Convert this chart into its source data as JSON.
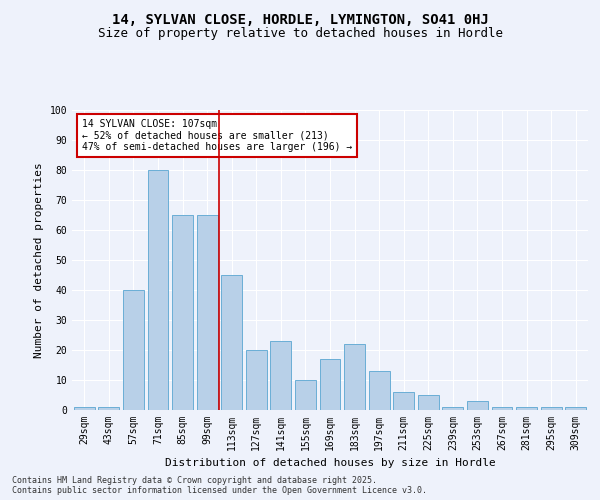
{
  "title": "14, SYLVAN CLOSE, HORDLE, LYMINGTON, SO41 0HJ",
  "subtitle": "Size of property relative to detached houses in Hordle",
  "xlabel": "Distribution of detached houses by size in Hordle",
  "ylabel": "Number of detached properties",
  "categories": [
    "29sqm",
    "43sqm",
    "57sqm",
    "71sqm",
    "85sqm",
    "99sqm",
    "113sqm",
    "127sqm",
    "141sqm",
    "155sqm",
    "169sqm",
    "183sqm",
    "197sqm",
    "211sqm",
    "225sqm",
    "239sqm",
    "253sqm",
    "267sqm",
    "281sqm",
    "295sqm",
    "309sqm"
  ],
  "values": [
    1,
    1,
    40,
    80,
    65,
    65,
    45,
    20,
    23,
    10,
    17,
    22,
    13,
    6,
    5,
    1,
    3,
    1,
    1,
    1,
    1
  ],
  "bar_color": "#b8d0e8",
  "bar_edgecolor": "#6aaed6",
  "property_line_x": 5.5,
  "annotation_line1": "14 SYLVAN CLOSE: 107sqm",
  "annotation_line2": "← 52% of detached houses are smaller (213)",
  "annotation_line3": "47% of semi-detached houses are larger (196) →",
  "annotation_box_color": "#ffffff",
  "annotation_box_edge": "#cc0000",
  "red_line_color": "#cc0000",
  "background_color": "#eef2fb",
  "grid_color": "#ffffff",
  "ylim": [
    0,
    100
  ],
  "yticks": [
    0,
    10,
    20,
    30,
    40,
    50,
    60,
    70,
    80,
    90,
    100
  ],
  "footnote": "Contains HM Land Registry data © Crown copyright and database right 2025.\nContains public sector information licensed under the Open Government Licence v3.0.",
  "title_fontsize": 10,
  "subtitle_fontsize": 9,
  "axis_label_fontsize": 8,
  "tick_fontsize": 7,
  "annotation_fontsize": 7,
  "footnote_fontsize": 6
}
